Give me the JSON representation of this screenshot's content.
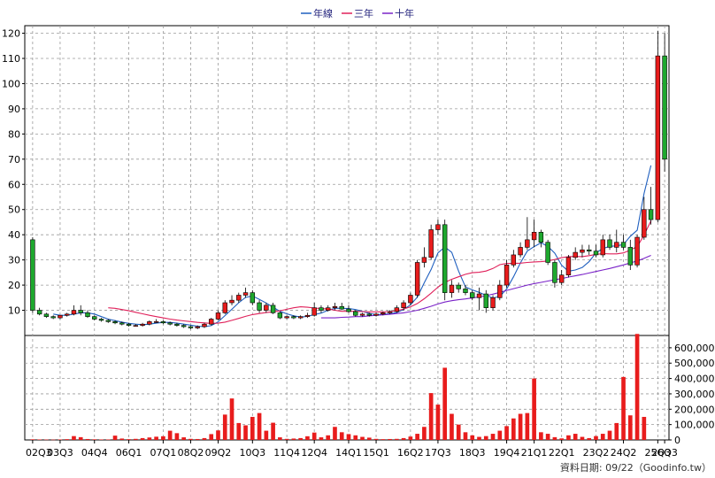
{
  "chart_data": [
    {
      "type": "candlestick",
      "title": "",
      "legend": {
        "placement": "top-center",
        "entries": [
          {
            "label": "年線",
            "color": "#1f5fbf"
          },
          {
            "label": "三年",
            "color": "#e0205a"
          },
          {
            "label": "十年",
            "color": "#7a22c8"
          }
        ]
      },
      "up_color": "#e81c1c",
      "down_color": "#1ea82e",
      "ylim": [
        0,
        123
      ],
      "y_ticks": [
        10,
        20,
        30,
        40,
        50,
        60,
        70,
        80,
        90,
        100,
        110,
        120
      ],
      "x_tick_labels": [
        "02Q3",
        "03Q3",
        "04Q4",
        "06Q1",
        "07Q1",
        "08Q2",
        "09Q2",
        "10Q3",
        "11Q4",
        "12Q4",
        "14Q1",
        "15Q1",
        "16Q2",
        "17Q3",
        "18Q3",
        "19Q4",
        "21Q1",
        "22Q1",
        "23Q2",
        "24Q2",
        "25Q3",
        "26Q3"
      ],
      "grid": true,
      "period": "quarterly",
      "candles_ohlc_sample": [
        [
          38,
          39,
          9,
          10
        ],
        [
          10,
          11,
          8,
          8.5
        ],
        [
          8.5,
          9,
          7,
          7.5
        ],
        [
          7.5,
          8,
          6.5,
          7
        ],
        [
          7,
          8,
          6.5,
          8
        ],
        [
          8,
          9,
          7.5,
          8.5
        ],
        [
          8.5,
          12,
          8,
          10
        ],
        [
          10,
          12,
          8,
          9
        ],
        [
          9,
          10,
          7,
          7.5
        ],
        [
          7.5,
          8,
          6,
          6.5
        ],
        [
          6.5,
          7,
          5.5,
          6
        ],
        [
          6,
          6.5,
          5,
          5.5
        ],
        [
          5.5,
          6,
          4.5,
          5
        ],
        [
          5,
          5.5,
          4,
          4.5
        ],
        [
          4.5,
          5,
          3.5,
          4
        ],
        [
          4,
          4.5,
          3.5,
          4
        ],
        [
          4,
          5,
          3.5,
          4.5
        ],
        [
          4.5,
          6,
          4,
          5.5
        ],
        [
          5.5,
          6.5,
          5,
          5.5
        ],
        [
          5.5,
          6,
          4.5,
          5
        ],
        [
          5,
          5.5,
          4,
          4.5
        ],
        [
          4.5,
          5,
          3.5,
          4
        ],
        [
          4,
          4.5,
          3,
          3.5
        ],
        [
          3.5,
          4,
          2.5,
          3
        ],
        [
          3,
          4,
          2.5,
          3.5
        ],
        [
          3.5,
          5,
          3,
          4.5
        ],
        [
          4.5,
          7,
          4,
          6.5
        ],
        [
          6.5,
          10,
          6,
          9
        ],
        [
          9,
          14,
          8.5,
          13
        ],
        [
          13,
          16,
          12,
          14
        ],
        [
          14,
          17,
          13,
          16
        ],
        [
          16,
          19,
          15,
          17
        ],
        [
          17,
          18,
          12,
          13
        ],
        [
          13,
          14,
          9,
          10
        ],
        [
          10,
          13,
          9,
          12
        ],
        [
          12,
          13,
          8.5,
          9
        ],
        [
          9,
          9.5,
          6.5,
          7
        ],
        [
          7,
          8,
          6.5,
          7.5
        ],
        [
          7.5,
          8,
          6.5,
          7
        ],
        [
          7,
          8,
          6.5,
          7.5
        ],
        [
          7.5,
          9,
          7,
          8
        ],
        [
          8,
          13,
          7.5,
          11
        ],
        [
          11,
          12,
          9,
          10
        ],
        [
          10,
          12,
          9.5,
          11
        ],
        [
          11,
          13,
          10,
          11.5
        ],
        [
          11.5,
          13,
          10,
          10.5
        ],
        [
          10.5,
          12,
          9,
          9.5
        ],
        [
          9.5,
          10,
          7.5,
          8
        ],
        [
          8,
          9,
          7.5,
          8.5
        ],
        [
          8.5,
          9,
          7.5,
          8
        ],
        [
          8,
          9,
          7.5,
          8.5
        ],
        [
          8.5,
          9.5,
          8,
          9
        ],
        [
          9,
          10,
          8.5,
          9.5
        ],
        [
          9.5,
          12,
          9,
          11
        ],
        [
          11,
          14,
          10,
          13
        ],
        [
          13,
          17,
          12,
          16
        ],
        [
          16,
          30,
          15,
          29
        ],
        [
          29,
          35,
          27,
          31
        ],
        [
          31,
          44,
          30,
          42
        ],
        [
          42,
          46,
          40,
          44
        ],
        [
          44,
          46,
          14,
          17
        ],
        [
          17,
          22,
          15,
          20
        ],
        [
          20,
          21,
          17,
          18.5
        ],
        [
          18.5,
          20,
          16,
          17
        ],
        [
          17,
          18,
          14,
          15
        ],
        [
          15,
          19,
          10,
          16.5
        ],
        [
          16.5,
          18,
          9,
          11
        ],
        [
          11,
          16,
          10,
          15
        ],
        [
          15,
          22,
          14,
          20
        ],
        [
          20,
          30,
          19,
          28
        ],
        [
          28,
          34,
          27,
          32
        ],
        [
          32,
          37,
          31,
          35
        ],
        [
          35,
          47,
          34,
          38
        ],
        [
          38,
          46,
          35,
          41
        ],
        [
          41,
          42,
          35,
          37
        ],
        [
          37,
          38,
          28,
          29
        ],
        [
          29,
          30,
          19,
          21
        ],
        [
          21,
          26,
          20,
          24
        ],
        [
          24,
          32,
          23,
          31
        ],
        [
          31,
          35,
          30,
          33
        ],
        [
          33,
          36,
          31,
          34
        ],
        [
          34,
          36,
          32,
          33.5
        ],
        [
          33.5,
          36,
          31,
          32
        ],
        [
          32,
          40,
          31,
          38
        ],
        [
          38,
          40,
          34,
          35
        ],
        [
          35,
          42,
          33,
          37
        ],
        [
          37,
          40,
          34,
          35
        ],
        [
          35,
          38,
          26,
          28
        ],
        [
          28,
          40,
          27,
          39
        ],
        [
          39,
          55,
          38,
          50
        ],
        [
          50,
          59,
          44,
          46
        ],
        [
          46,
          121,
          45,
          111
        ],
        [
          111,
          120,
          65,
          70
        ]
      ],
      "series": [
        {
          "name": "年線",
          "values": [
            null,
            null,
            null,
            8.5,
            8,
            8,
            8.5,
            9,
            9,
            8.5,
            7.5,
            6.5,
            5.9,
            5.3,
            4.8,
            4.5,
            4.3,
            4.5,
            4.9,
            5.2,
            5.2,
            4.9,
            4.5,
            4.1,
            3.7,
            3.5,
            3.9,
            5.4,
            7.9,
            10.4,
            13,
            15.1,
            15.7,
            14.3,
            12.9,
            11.2,
            9.6,
            8.6,
            7.8,
            7.3,
            7.6,
            8.3,
            8.9,
            10,
            10.8,
            10.8,
            10.7,
            10.3,
            9.6,
            8.8,
            8.3,
            8.4,
            8.6,
            9.1,
            10.3,
            12.2,
            15.2,
            20.9,
            26.2,
            32.8,
            35.1,
            33,
            25.6,
            19.3,
            18.1,
            17.1,
            15.9,
            14.9,
            15.5,
            18.5,
            23.3,
            28.8,
            33.5,
            35.3,
            36.8,
            35.4,
            32.7,
            27.9,
            25.5,
            26,
            27,
            29.3,
            32.8,
            34.5,
            35.4,
            35.6,
            36.1,
            39.4,
            41.8,
            56.3,
            67.5
          ]
        },
        {
          "name": "三年",
          "values": [
            null,
            null,
            null,
            null,
            null,
            null,
            null,
            null,
            null,
            null,
            null,
            11,
            10.8,
            10.3,
            9.8,
            9.2,
            8.6,
            8,
            7.5,
            7,
            6.5,
            6.1,
            5.8,
            5.5,
            5.2,
            5,
            4.8,
            4.9,
            5.3,
            6,
            6.8,
            7.6,
            8.3,
            8.7,
            9.1,
            9.4,
            9.8,
            10.4,
            11,
            11.4,
            11.2,
            10.9,
            10.7,
            10.5,
            10,
            9.6,
            9.6,
            9.6,
            9.5,
            9.4,
            9.4,
            9.4,
            9.5,
            9.8,
            10.5,
            11.4,
            12.7,
            14.6,
            16.8,
            19.2,
            21.1,
            22.3,
            23.3,
            24.3,
            24.9,
            25.1,
            25.6,
            26.6,
            28.1,
            28.6,
            28.6,
            28.7,
            29,
            29.2,
            29.3,
            29.6,
            30.2,
            30.9,
            31.3,
            31.4,
            31.3,
            31.7,
            32.2,
            32.5,
            32.4,
            32.4,
            32.8,
            33.9,
            35.3,
            39.8,
            45.5
          ]
        },
        {
          "name": "十年",
          "values": [
            null,
            null,
            null,
            null,
            null,
            null,
            null,
            null,
            null,
            null,
            null,
            null,
            null,
            null,
            null,
            null,
            null,
            null,
            null,
            null,
            null,
            null,
            null,
            null,
            null,
            null,
            null,
            null,
            null,
            null,
            null,
            null,
            null,
            null,
            null,
            null,
            null,
            null,
            null,
            null,
            null,
            null,
            7,
            7,
            7,
            7.2,
            7.3,
            7.5,
            7.5,
            7.8,
            8,
            8.2,
            8.4,
            8.7,
            9,
            9.5,
            10,
            10.8,
            11.6,
            12.5,
            13.3,
            13.8,
            14.2,
            14.5,
            14.9,
            15.3,
            15.8,
            16.4,
            17.1,
            17.9,
            18.6,
            19.3,
            20,
            20.6,
            21.1,
            21.6,
            22.1,
            22.6,
            23.2,
            23.7,
            24.2,
            24.8,
            25.4,
            26,
            26.6,
            27.3,
            28,
            28.8,
            29.6,
            30.6,
            31.8
          ]
        }
      ]
    },
    {
      "type": "bar",
      "color": "#e81c1c",
      "ylim": [
        0,
        680000
      ],
      "y_tick_labels": [
        "0",
        "100,000",
        "200,000",
        "300,000",
        "400,000",
        "500,000",
        "600,000"
      ],
      "values": [
        4000,
        3000,
        2500,
        2000,
        3000,
        5000,
        25000,
        18000,
        6000,
        4000,
        3000,
        3000,
        28000,
        9000,
        5000,
        7000,
        12000,
        16000,
        21000,
        24000,
        60000,
        44000,
        17000,
        7000,
        6000,
        12000,
        38000,
        62000,
        165000,
        270000,
        110000,
        95000,
        150000,
        175000,
        60000,
        112000,
        17000,
        7000,
        9000,
        12000,
        24000,
        48000,
        17000,
        30000,
        85000,
        50000,
        38000,
        30000,
        20000,
        15000,
        7000,
        5000,
        6000,
        7000,
        12000,
        22000,
        40000,
        85000,
        305000,
        230000,
        470000,
        170000,
        100000,
        50000,
        30000,
        20000,
        25000,
        40000,
        60000,
        90000,
        140000,
        170000,
        175000,
        400000,
        50000,
        40000,
        18000,
        10000,
        30000,
        40000,
        20000,
        12000,
        25000,
        40000,
        60000,
        110000,
        410000,
        160000,
        690000,
        150000
      ]
    }
  ],
  "footer": {
    "source_text": "資料日期: 09/22（Goodinfo.tw）"
  }
}
